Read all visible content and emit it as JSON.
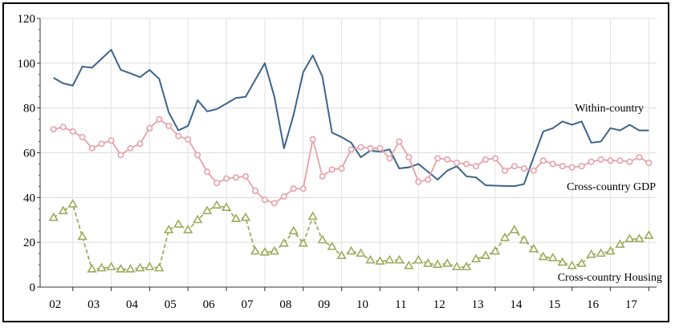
{
  "chart_data": {
    "type": "line",
    "title": "",
    "xlabel": "",
    "ylabel": "",
    "ylim": [
      0,
      120
    ],
    "y_ticks": [
      0,
      20,
      40,
      60,
      80,
      100,
      120
    ],
    "x_tick_labels": [
      "02",
      "03",
      "04",
      "05",
      "06",
      "07",
      "08",
      "09",
      "10",
      "11",
      "12",
      "13",
      "14",
      "15",
      "16",
      "17"
    ],
    "grid": "vertical and horizontal light gray",
    "x": [
      2002.0,
      2002.25,
      2002.5,
      2002.75,
      2003.0,
      2003.25,
      2003.5,
      2003.75,
      2004.0,
      2004.25,
      2004.5,
      2004.75,
      2005.0,
      2005.25,
      2005.5,
      2005.75,
      2006.0,
      2006.25,
      2006.5,
      2006.75,
      2007.0,
      2007.25,
      2007.5,
      2007.75,
      2008.0,
      2008.25,
      2008.5,
      2008.75,
      2009.0,
      2009.25,
      2009.5,
      2009.75,
      2010.0,
      2010.25,
      2010.5,
      2010.75,
      2011.0,
      2011.25,
      2011.5,
      2011.75,
      2012.0,
      2012.25,
      2012.5,
      2012.75,
      2013.0,
      2013.25,
      2013.5,
      2013.75,
      2014.0,
      2014.25,
      2014.5,
      2014.75,
      2015.0,
      2015.25,
      2015.5,
      2015.75,
      2016.0,
      2016.25,
      2016.5,
      2016.75,
      2017.0,
      2017.25,
      2017.5
    ],
    "series": [
      {
        "name": "Within-country",
        "color": "#3c648c",
        "marker": "none",
        "dash": "solid",
        "values": [
          93.5,
          91,
          90,
          98.5,
          98,
          102,
          106,
          97,
          95.5,
          93.8,
          97,
          93,
          78,
          70,
          72,
          83.5,
          78.5,
          79.5,
          82,
          84.5,
          85,
          92.5,
          100,
          85,
          62,
          77,
          96,
          103.5,
          94,
          69,
          67,
          64.5,
          58,
          61,
          60.5,
          61.5,
          53,
          53.5,
          55,
          51.5,
          48,
          52,
          54,
          49.5,
          49,
          45.5,
          45.3,
          45.2,
          45.1,
          46,
          58,
          69.5,
          71,
          74,
          72.5,
          74,
          64.5,
          65,
          71,
          70,
          72.5,
          70,
          70
        ]
      },
      {
        "name": "Cross-country GDP",
        "color": "#e8a0a8",
        "marker": "circle",
        "dash": "solid",
        "values": [
          70.5,
          71.5,
          69.5,
          67,
          62,
          64,
          65.5,
          59,
          62,
          64,
          71,
          75,
          72,
          67.5,
          66,
          59,
          51.5,
          46.5,
          48.5,
          49,
          49.5,
          43,
          39,
          37.5,
          40.5,
          44,
          44,
          66,
          49.5,
          52.5,
          53,
          61.5,
          62.5,
          62,
          62,
          57.5,
          65,
          58,
          47,
          48,
          57.5,
          57,
          55.5,
          55,
          54,
          57,
          57.5,
          52,
          54,
          53,
          52,
          56.5,
          55,
          54,
          53.5,
          54,
          56,
          57,
          56.5,
          56.5,
          56,
          58,
          55.5
        ]
      },
      {
        "name": "Cross-country Housing",
        "color": "#9cac5c",
        "marker": "triangle",
        "dash": "dashed",
        "values": [
          31,
          34,
          37,
          22.5,
          8,
          8.5,
          9,
          8,
          8,
          8.5,
          9,
          8.5,
          25.5,
          28,
          25.5,
          30,
          34,
          36.5,
          35.5,
          30.5,
          31,
          16,
          15.5,
          16,
          19.5,
          25,
          19.5,
          31.5,
          21,
          18,
          14,
          16,
          15,
          12,
          11.5,
          12,
          12,
          9.5,
          12,
          10.5,
          10,
          10.5,
          9,
          9,
          12.5,
          14,
          16,
          22,
          25.5,
          21,
          17,
          13.5,
          13,
          11,
          9.5,
          10.5,
          14.5,
          15,
          16,
          19,
          21.5,
          21.5,
          23
        ]
      }
    ]
  }
}
